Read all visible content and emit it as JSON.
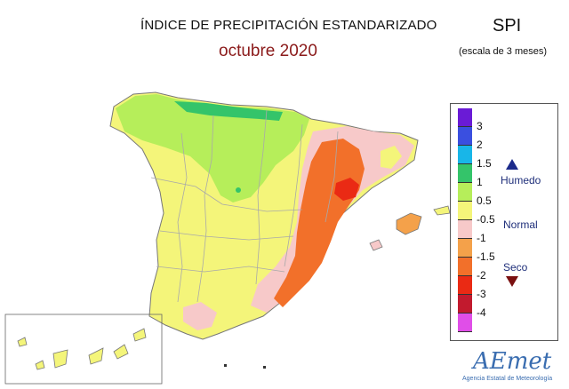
{
  "header": {
    "title": "ÍNDICE DE PRECIPITACIÓN ESTANDARIZADO",
    "subtitle": "octubre 2020",
    "index_code": "SPI",
    "scale_note": "(escala de 3 meses)"
  },
  "legend": {
    "classes": [
      {
        "color": "#6a1bd6"
      },
      {
        "color": "#3a4fe0"
      },
      {
        "color": "#18b6e8"
      },
      {
        "color": "#34c46a"
      },
      {
        "color": "#b6ee5a"
      },
      {
        "color": "#f4f57a"
      },
      {
        "color": "#f7c9c9"
      },
      {
        "color": "#f4a14a"
      },
      {
        "color": "#f2702a"
      },
      {
        "color": "#ea2a14"
      },
      {
        "color": "#c21a2e"
      },
      {
        "color": "#e04ee8"
      }
    ],
    "ticks": [
      "3",
      "2",
      "1.5",
      "1",
      "0.5",
      "-0.5",
      "-1",
      "-1.5",
      "-2",
      "-3",
      "-4"
    ],
    "categories": {
      "wet": "Humedo",
      "normal": "Normal",
      "dry": "Seco"
    },
    "wet_arrow_color": "#1b2a8a",
    "dry_arrow_color": "#7a1010"
  },
  "logo": {
    "wordmark": "AEmet",
    "agency": "Agencia Estatal de Meteorología"
  },
  "map_colors": {
    "land_normal": "#f4f57a",
    "wet_light": "#b6ee5a",
    "wet": "#34c46a",
    "dry_light": "#f7c9c9",
    "dry": "#f4a14a",
    "dry_strong": "#f2702a",
    "very_dry": "#ea2a14",
    "border": "#a9a9a9"
  }
}
